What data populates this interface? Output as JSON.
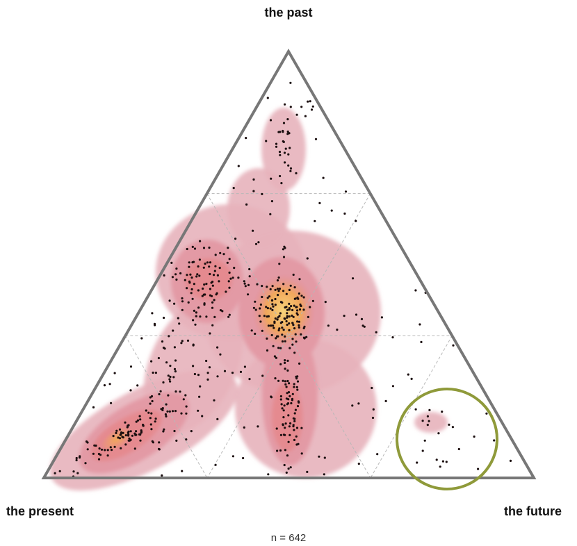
{
  "chart_data": {
    "type": "ternary",
    "vertices": {
      "top": "the past",
      "bottom_left": "the present",
      "bottom_right": "the future"
    },
    "n_label": "n = 642",
    "n": 642,
    "grid": "dashed, 1/3 divisions",
    "density_regions": [
      {
        "name": "",
        "center": [
          0.3,
          0.17,
          0.53
        ],
        "peak": "high"
      },
      {
        "name": "",
        "center": [
          0.45,
          0.4,
          0.15
        ],
        "peak": "medium"
      },
      {
        "name": "",
        "center": [
          0.13,
          0.8,
          0.07
        ],
        "peak": "high"
      },
      {
        "name": "",
        "center": [
          0.1,
          0.55,
          0.35
        ],
        "peak": "medium"
      },
      {
        "name": "",
        "center": [
          0.85,
          0.1,
          0.05
        ],
        "peak": "low"
      },
      {
        "name": "",
        "center": [
          0.1,
          0.22,
          0.68
        ],
        "peak": "low"
      }
    ],
    "highlight_circle": {
      "center": [
        0.07,
        0.2,
        0.73
      ],
      "color": "#8f9a3a"
    }
  },
  "colors": {
    "frame": "#777777",
    "grid": "#b8b8b8",
    "density_outer": "#e7b2bb",
    "density_mid": "#e39aa5",
    "density_inner": "#e58a8f",
    "density_core": "#f1a75c",
    "density_peak": "#f8d47a",
    "dots": "#1b0f10",
    "circle": "#8f9a3a"
  }
}
